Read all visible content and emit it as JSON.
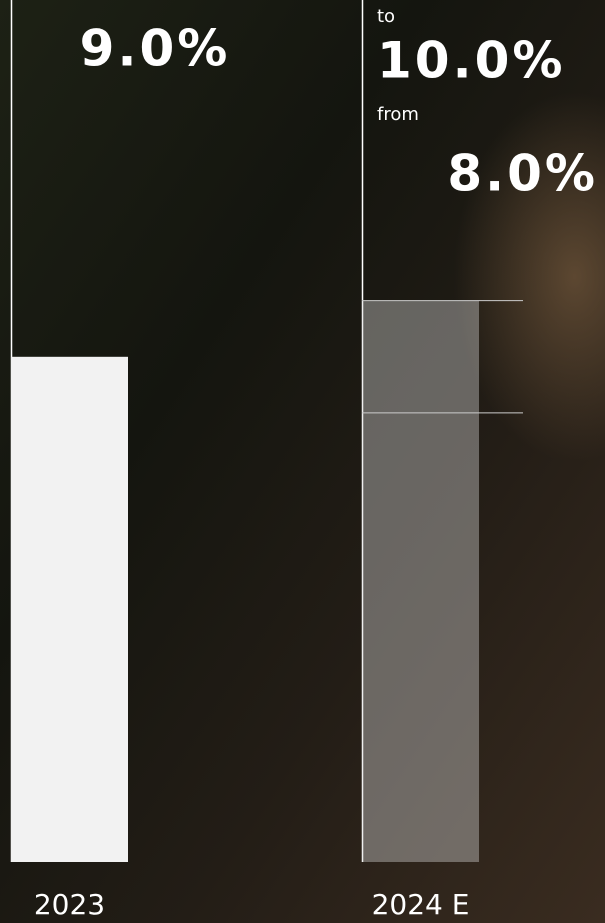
{
  "chart_data": {
    "type": "bar",
    "categories": [
      "2023",
      "2024 E"
    ],
    "values": [
      9.0,
      10.0
    ],
    "value_labels": [
      "9.0%",
      "10.0%"
    ],
    "value_prefix": [
      null,
      "to"
    ],
    "low_values": [
      null,
      8.0
    ],
    "low_labels": [
      null,
      "8.0%"
    ],
    "low_prefix": [
      null,
      "from"
    ],
    "colors": [
      "#f2f2f2",
      "#d8d8d8"
    ],
    "ylim": [
      0,
      15
    ]
  }
}
